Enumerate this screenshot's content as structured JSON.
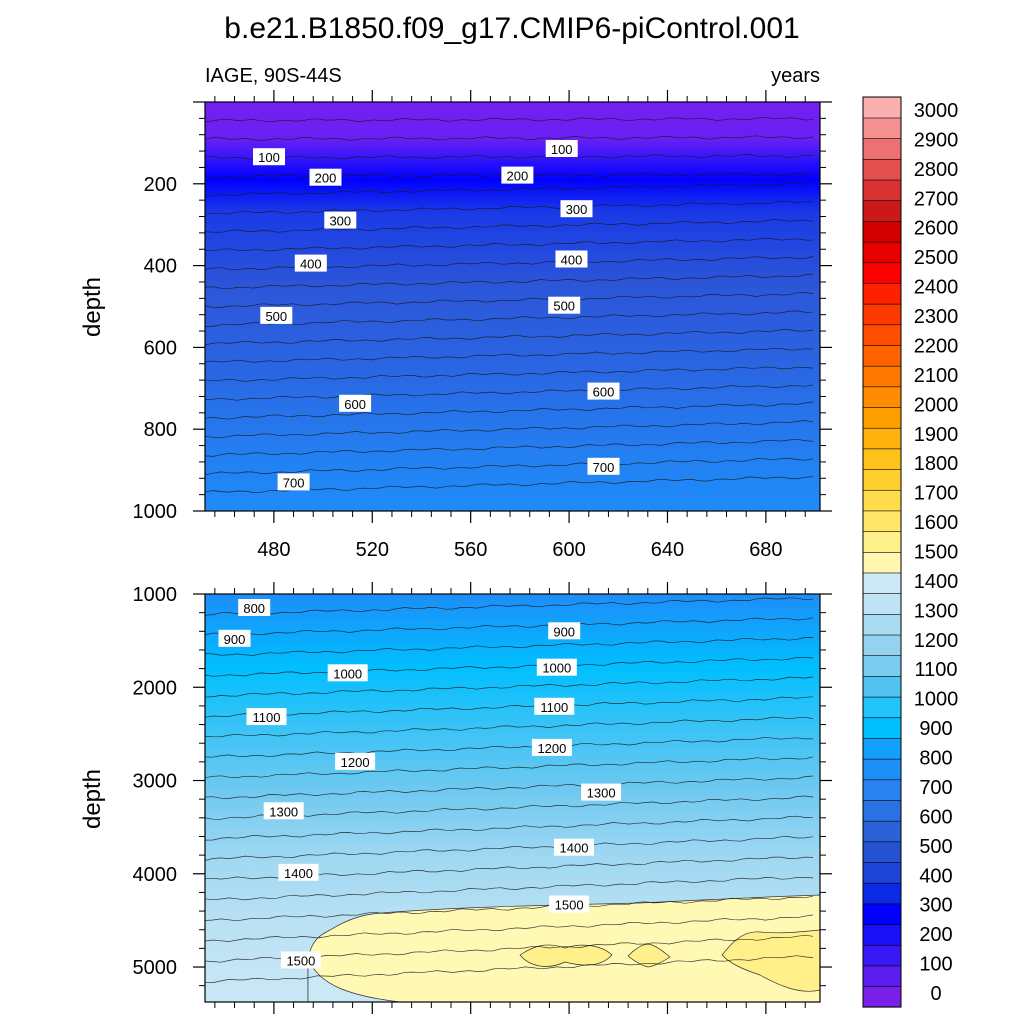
{
  "title": "b.e21.B1850.f09_g17.CMIP6-piControl.001",
  "left_label": "IAGE, 90S-44S",
  "right_label": "years",
  "chart_data": [
    {
      "type": "heatmap",
      "panel": "upper",
      "xlim": [
        452,
        702
      ],
      "ylim": [
        1000,
        0
      ],
      "y_inverted": true,
      "ylabel": "depth",
      "xticks": [
        "480",
        "520",
        "560",
        "600",
        "640",
        "680"
      ],
      "yticks": [
        "200",
        "400",
        "600",
        "800",
        "1000"
      ],
      "contour_labels": [
        {
          "text": "100",
          "x": 478,
          "y": 135
        },
        {
          "text": "200",
          "x": 501,
          "y": 185
        },
        {
          "text": "300",
          "x": 507,
          "y": 290
        },
        {
          "text": "400",
          "x": 495,
          "y": 395
        },
        {
          "text": "500",
          "x": 481,
          "y": 523
        },
        {
          "text": "600",
          "x": 513,
          "y": 738
        },
        {
          "text": "700",
          "x": 488,
          "y": 930
        },
        {
          "text": "100",
          "x": 597,
          "y": 115
        },
        {
          "text": "200",
          "x": 579,
          "y": 180
        },
        {
          "text": "300",
          "x": 603,
          "y": 262
        },
        {
          "text": "400",
          "x": 601,
          "y": 385
        },
        {
          "text": "500",
          "x": 598,
          "y": 498
        },
        {
          "text": "600",
          "x": 614,
          "y": 708
        },
        {
          "text": "700",
          "x": 614,
          "y": 892
        }
      ]
    },
    {
      "type": "heatmap",
      "panel": "lower",
      "xlim": [
        452,
        702
      ],
      "ylim": [
        5375,
        1000
      ],
      "y_inverted": true,
      "ylabel": "depth",
      "yticks": [
        "1000",
        "2000",
        "3000",
        "4000",
        "5000"
      ],
      "contour_labels": [
        {
          "text": "800",
          "x": 472,
          "y": 1150
        },
        {
          "text": "900",
          "x": 464,
          "y": 1480
        },
        {
          "text": "1000",
          "x": 510,
          "y": 1850
        },
        {
          "text": "1100",
          "x": 477,
          "y": 2320
        },
        {
          "text": "1200",
          "x": 513,
          "y": 2800
        },
        {
          "text": "1300",
          "x": 484,
          "y": 3330
        },
        {
          "text": "1400",
          "x": 490,
          "y": 3990
        },
        {
          "text": "1500",
          "x": 491,
          "y": 4930
        },
        {
          "text": "900",
          "x": 598,
          "y": 1400
        },
        {
          "text": "1000",
          "x": 595,
          "y": 1790
        },
        {
          "text": "1100",
          "x": 594,
          "y": 2210
        },
        {
          "text": "1200",
          "x": 593,
          "y": 2650
        },
        {
          "text": "1300",
          "x": 613,
          "y": 3130
        },
        {
          "text": "1400",
          "x": 602,
          "y": 3720
        },
        {
          "text": "1500",
          "x": 600,
          "y": 4330
        }
      ]
    }
  ],
  "colorbar": {
    "labels": [
      "0",
      "100",
      "200",
      "300",
      "400",
      "500",
      "600",
      "700",
      "800",
      "900",
      "1000",
      "1100",
      "1200",
      "1300",
      "1400",
      "1500",
      "1600",
      "1700",
      "1800",
      "1900",
      "2000",
      "2100",
      "2200",
      "2300",
      "2400",
      "2500",
      "2600",
      "2700",
      "2800",
      "2900",
      "3000"
    ],
    "colors": [
      "#7a1fe8",
      "#5c1cf0",
      "#3a18f5",
      "#1a10f8",
      "#0000ff",
      "#0a2ae6",
      "#1f44d8",
      "#2552d2",
      "#2a62d8",
      "#2a72e4",
      "#2a82f0",
      "#1d8ff8",
      "#12a0fc",
      "#00bfff",
      "#22c4fa",
      "#52c2f2",
      "#7accf0",
      "#93d3f0",
      "#a9dbf2",
      "#bde3f4",
      "#cde9f6",
      "#fff7b0",
      "#fff08a",
      "#ffe669",
      "#ffdc4b",
      "#ffcf2e",
      "#ffc21a",
      "#ffb20d",
      "#ffa000",
      "#ff8c00",
      "#ff7800",
      "#ff6300",
      "#ff4e00",
      "#ff3a00",
      "#ff2000",
      "#ff0000",
      "#e80000",
      "#d20000",
      "#cc1818",
      "#d83232",
      "#e45050",
      "#ee7070",
      "#f59090",
      "#fbb0b0"
    ]
  }
}
